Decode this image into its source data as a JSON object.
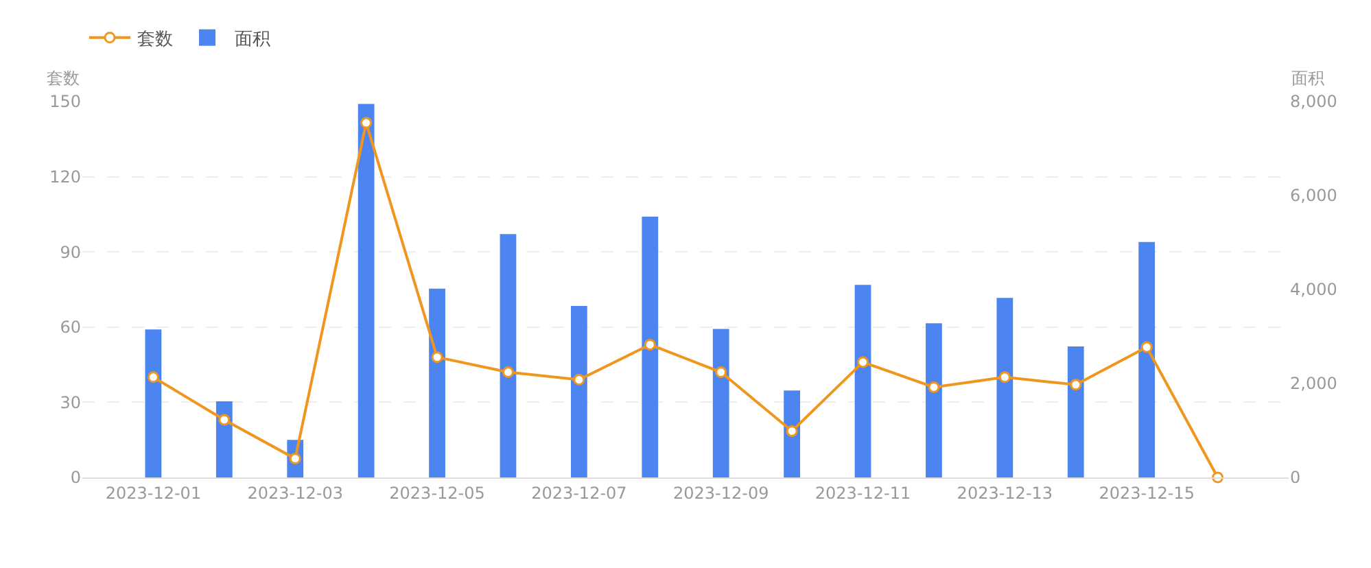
{
  "chart_data": {
    "type": "bar",
    "ylabel": "套数",
    "y2label": "面积",
    "x": [
      "2023-12-01",
      "2023-12-02",
      "2023-12-03",
      "2023-12-04",
      "2023-12-05",
      "2023-12-06",
      "2023-12-07",
      "2023-12-08",
      "2023-12-09",
      "2023-12-10",
      "2023-12-11",
      "2023-12-12",
      "2023-12-13",
      "2023-12-14",
      "2023-12-15",
      "2023-12-16"
    ],
    "xlim": [
      "2023-11-30",
      "2023-12-17"
    ],
    "xticks": [
      "2023-12-01",
      "2023-12-03",
      "2023-12-05",
      "2023-12-07",
      "2023-12-09",
      "2023-12-11",
      "2023-12-13",
      "2023-12-15"
    ],
    "series": [
      {
        "name": "套数",
        "type": "line",
        "color": "#f0961e",
        "marker": "circle",
        "values": [
          40,
          23,
          7.5,
          141.5,
          48,
          42,
          39,
          53,
          42,
          18.5,
          46,
          36,
          40,
          37,
          52,
          0
        ]
      },
      {
        "name": "面积",
        "axis": "y2",
        "color": "#4d85f0",
        "values": [
          3150,
          1620,
          800,
          7950,
          4020,
          5180,
          3650,
          5550,
          3160,
          1850,
          4100,
          3280,
          3820,
          2790,
          5010,
          0
        ]
      }
    ],
    "ylim": [
      0,
      150
    ],
    "yticks": [
      0,
      30,
      60,
      90,
      120,
      150
    ],
    "y2lim": [
      0,
      8000
    ],
    "y2ticks": [
      {
        "value": 0,
        "label": "0"
      },
      {
        "value": 2000,
        "label": "2,000"
      },
      {
        "value": 4000,
        "label": "4,000"
      },
      {
        "value": 6000,
        "label": "6,000"
      },
      {
        "value": 8000,
        "label": "8,000"
      }
    ],
    "grid": "y",
    "legend": "top left"
  }
}
